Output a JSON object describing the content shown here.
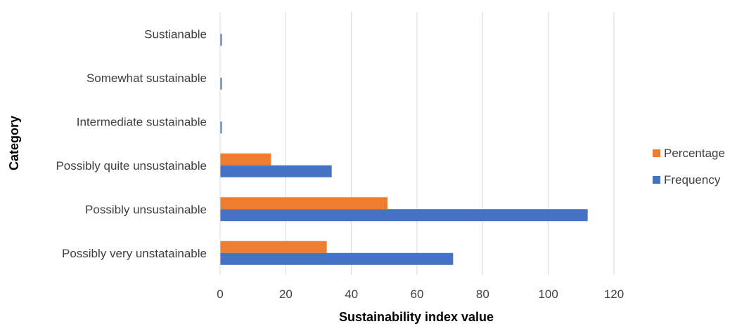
{
  "chart_data": {
    "type": "bar",
    "orientation": "horizontal",
    "categories": [
      "Sustianable",
      "Somewhat sustainable",
      "Intermediate sustainable",
      "Possibly quite unsustainable",
      "Possibly unsustainable",
      "Possibly very unstatainable"
    ],
    "series": [
      {
        "name": "Percentage",
        "color": "#ED7D31",
        "values": [
          0,
          0,
          0,
          15.5,
          51,
          32.5
        ]
      },
      {
        "name": "Frequency",
        "color": "#4472C4",
        "values": [
          0.5,
          0.5,
          0.5,
          34,
          112,
          71
        ]
      }
    ],
    "xlabel": "Sustainability  index value",
    "ylabel": "Category",
    "xlim": [
      0,
      120
    ],
    "xticks": [
      "0",
      "20",
      "40",
      "60",
      "80",
      "100",
      "120"
    ],
    "grid": true,
    "legend_position": "right"
  }
}
